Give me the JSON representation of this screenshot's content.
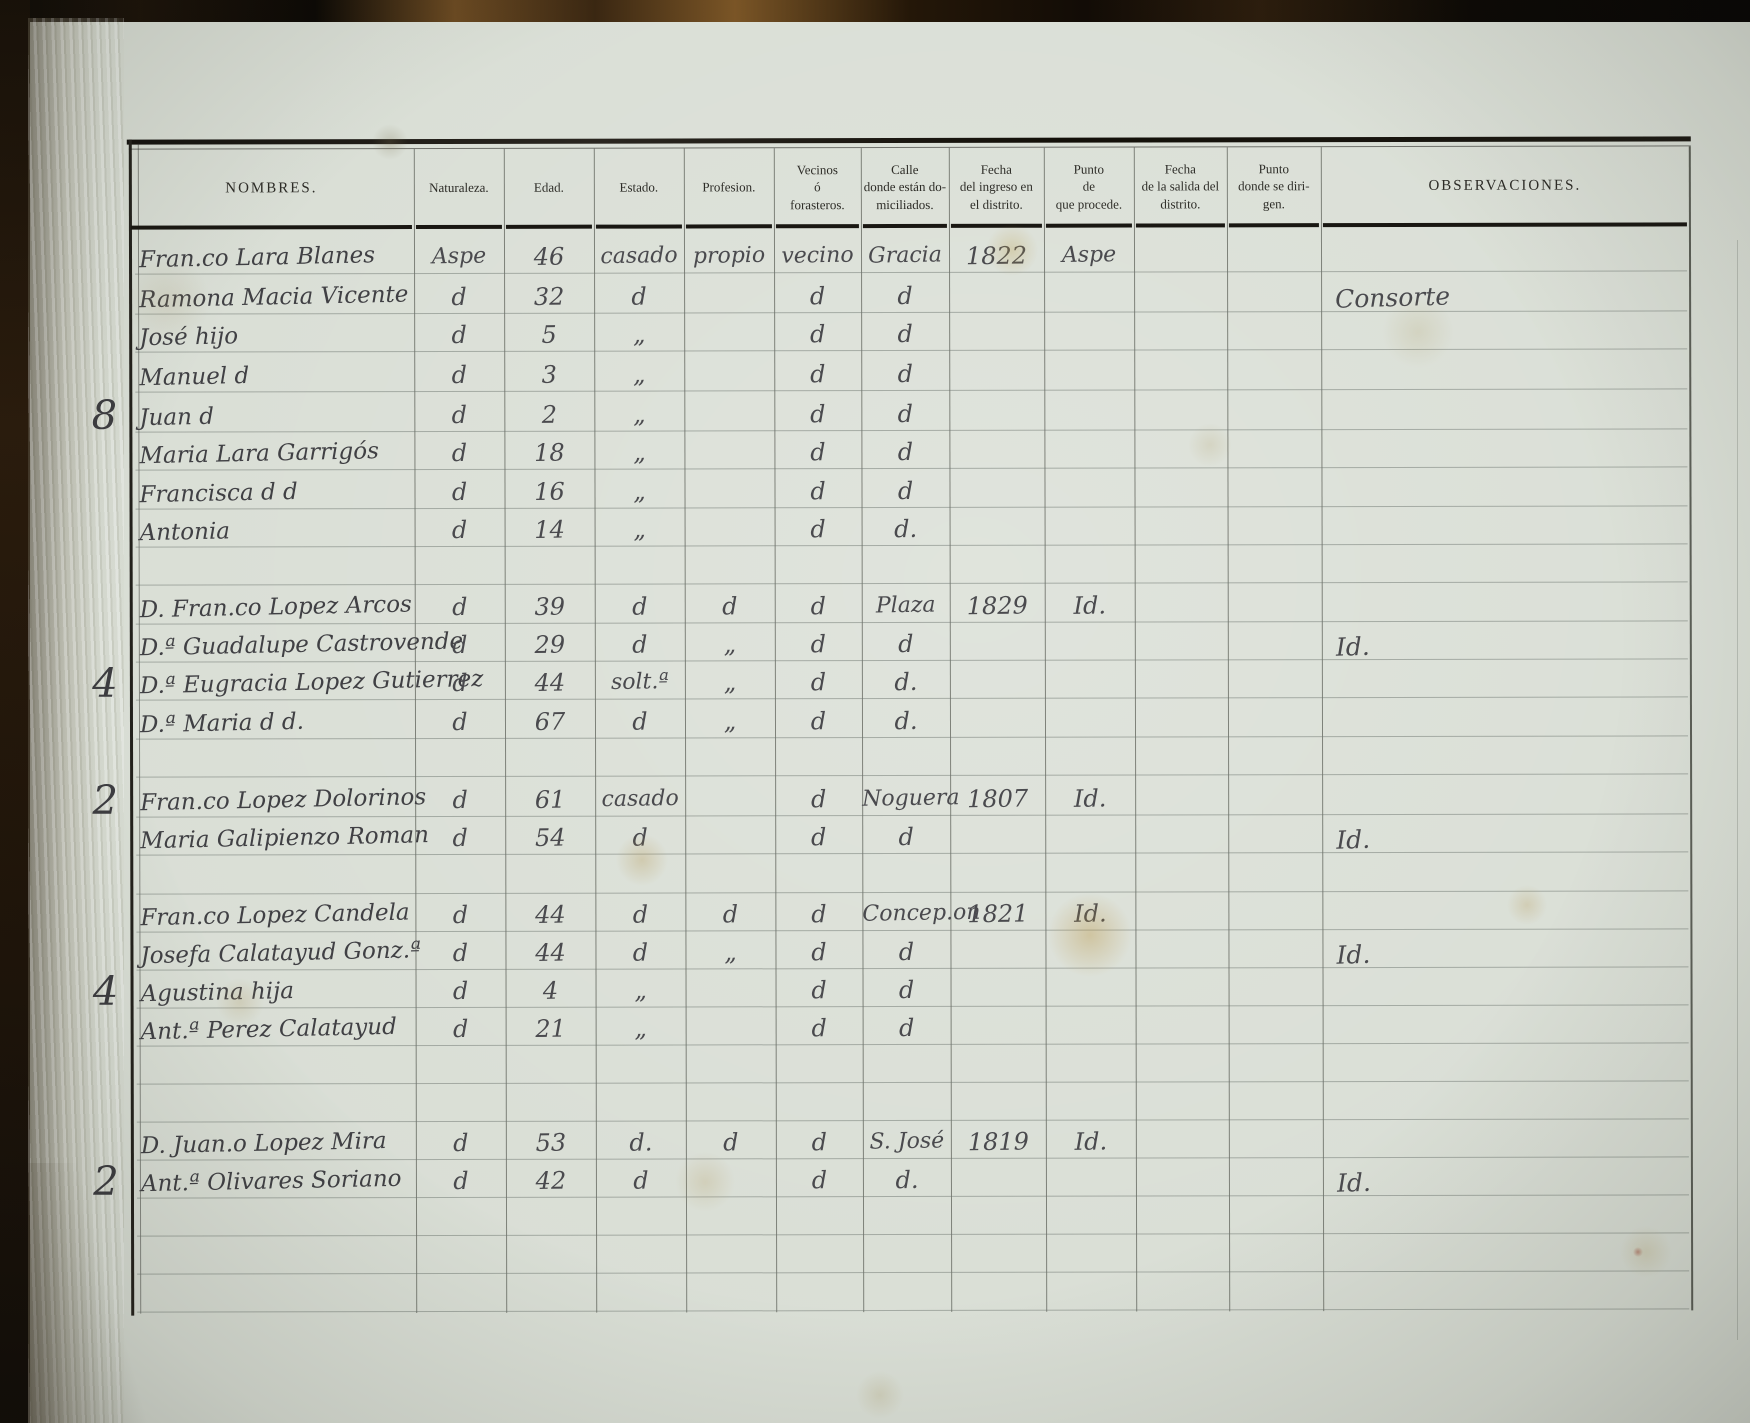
{
  "palette": {
    "paper": "#d9ded5",
    "handwriting_ink": "#46464b",
    "printed_ink": "#2d2c27",
    "binding": "#1d1309"
  },
  "document": {
    "type": "census-register-page",
    "columns": [
      {
        "key": "nombres",
        "label": "NOMBRES."
      },
      {
        "key": "naturaleza",
        "label": "Naturaleza."
      },
      {
        "key": "edad",
        "label": "Edad."
      },
      {
        "key": "estado",
        "label": "Estado."
      },
      {
        "key": "profesion",
        "label": "Profesion."
      },
      {
        "key": "vecinos",
        "label": "Vecinos\nó\nforasteros."
      },
      {
        "key": "calle",
        "label": "Calle\ndonde están do-\nmiciliados."
      },
      {
        "key": "fecha_ingreso",
        "label": "Fecha\ndel ingreso en\nel distrito."
      },
      {
        "key": "punto_procede",
        "label": "Punto\nde\nque procede."
      },
      {
        "key": "fecha_salida",
        "label": "Fecha\nde la salida del\ndistrito."
      },
      {
        "key": "punto_dirigen",
        "label": "Punto\ndonde se diri-\ngen."
      },
      {
        "key": "observaciones",
        "label": "OBSERVACIONES."
      }
    ],
    "rows": [
      {
        "nombres": "Fran.co Lara Blanes",
        "naturaleza": "Aspe",
        "edad": "46",
        "estado": "casado",
        "profesion": "propio",
        "vecinos": "vecino",
        "calle": "Gracia",
        "fecha_ingreso": "1822",
        "punto_procede": "Aspe"
      },
      {
        "nombres": "Ramona Macia Vicente",
        "naturaleza": "d",
        "edad": "32",
        "estado": "d",
        "vecinos": "d",
        "calle": "d",
        "observaciones": "Consorte"
      },
      {
        "nombres": "José hijo",
        "naturaleza": "d",
        "edad": "5",
        "estado": "„",
        "vecinos": "d",
        "calle": "d"
      },
      {
        "nombres": "Manuel d",
        "naturaleza": "d",
        "edad": "3",
        "estado": "„",
        "vecinos": "d",
        "calle": "d"
      },
      {
        "nombres": "Juan d",
        "naturaleza": "d",
        "edad": "2",
        "estado": "„",
        "vecinos": "d",
        "calle": "d",
        "group": "8"
      },
      {
        "nombres": "Maria Lara Garrigós",
        "naturaleza": "d",
        "edad": "18",
        "estado": "„",
        "vecinos": "d",
        "calle": "d"
      },
      {
        "nombres": "Francisca d d",
        "naturaleza": "d",
        "edad": "16",
        "estado": "„",
        "vecinos": "d",
        "calle": "d"
      },
      {
        "nombres": "Antonia",
        "naturaleza": "d",
        "edad": "14",
        "estado": "„",
        "vecinos": "d",
        "calle": "d."
      },
      {
        "nombres": "D. Fran.co Lopez Arcos",
        "naturaleza": "d",
        "edad": "39",
        "estado": "d",
        "profesion": "d",
        "vecinos": "d",
        "calle": "Plaza",
        "fecha_ingreso": "1829",
        "punto_procede": "Id."
      },
      {
        "nombres": "D.ª Guadalupe Castrovende",
        "naturaleza": "d",
        "edad": "29",
        "estado": "d",
        "profesion": "„",
        "vecinos": "d",
        "calle": "d",
        "observaciones": "Id."
      },
      {
        "nombres": "D.ª Eugracia Lopez Gutierrez",
        "naturaleza": "d",
        "edad": "44",
        "estado": "solt.ª",
        "profesion": "„",
        "vecinos": "d",
        "calle": "d.",
        "group": "4"
      },
      {
        "nombres": "D.ª Maria d d.",
        "naturaleza": "d",
        "edad": "67",
        "estado": "d",
        "profesion": "„",
        "vecinos": "d",
        "calle": "d."
      },
      {
        "nombres": "Fran.co Lopez Dolorinos",
        "naturaleza": "d",
        "edad": "61",
        "estado": "casado",
        "vecinos": "d",
        "calle": "Noguera",
        "fecha_ingreso": "1807",
        "punto_procede": "Id.",
        "group": "2"
      },
      {
        "nombres": "Maria Galipienzo Roman",
        "naturaleza": "d",
        "edad": "54",
        "estado": "d",
        "vecinos": "d",
        "calle": "d",
        "observaciones": "Id."
      },
      {
        "nombres": "Fran.co Lopez Candela",
        "naturaleza": "d",
        "edad": "44",
        "estado": "d",
        "profesion": "d",
        "vecinos": "d",
        "calle": "Concep.on",
        "fecha_ingreso": "1821",
        "punto_procede": "Id."
      },
      {
        "nombres": "Josefa Calatayud Gonz.ª",
        "naturaleza": "d",
        "edad": "44",
        "estado": "d",
        "profesion": "„",
        "vecinos": "d",
        "calle": "d",
        "observaciones": "Id."
      },
      {
        "nombres": "Agustina hija",
        "naturaleza": "d",
        "edad": "4",
        "estado": "„",
        "vecinos": "d",
        "calle": "d",
        "group": "4"
      },
      {
        "nombres": "Ant.ª Perez Calatayud",
        "naturaleza": "d",
        "edad": "21",
        "estado": "„",
        "vecinos": "d",
        "calle": "d"
      },
      {
        "nombres": "D. Juan.o Lopez Mira",
        "naturaleza": "d",
        "edad": "53",
        "estado": "d.",
        "profesion": "d",
        "vecinos": "d",
        "calle": "S. José",
        "fecha_ingreso": "1819",
        "punto_procede": "Id."
      },
      {
        "nombres": "Ant.ª Olivares Soriano",
        "naturaleza": "d",
        "edad": "42",
        "estado": "d",
        "vecinos": "d",
        "calle": "d.",
        "observaciones": "Id.",
        "group": "2"
      }
    ]
  }
}
